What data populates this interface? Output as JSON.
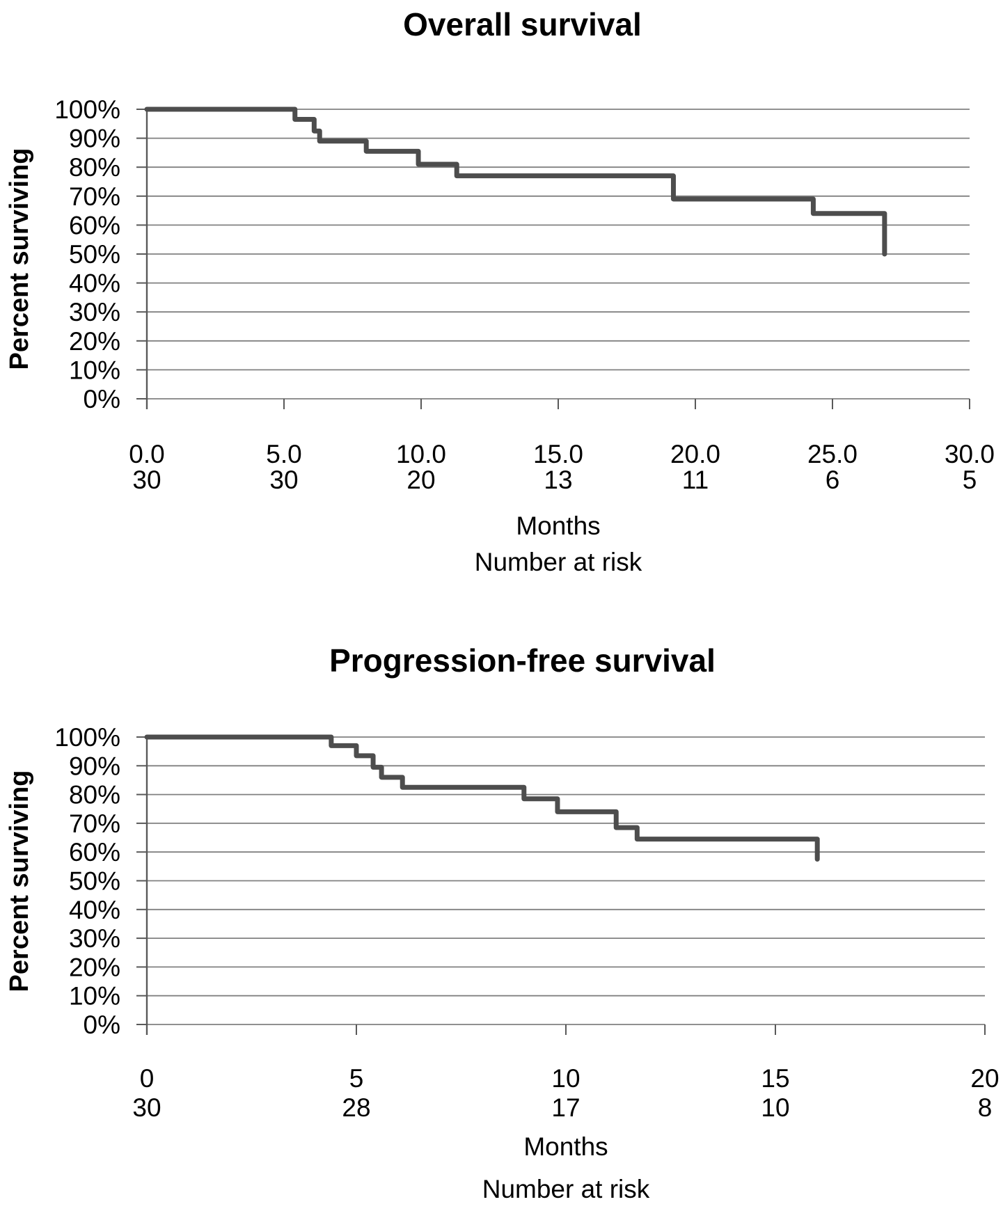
{
  "figure": {
    "background": "#ffffff",
    "curve_color": "#4d4d4d",
    "gridline_color": "#808080",
    "axis_color": "#595959",
    "text_color": "#000000"
  },
  "chart_data": [
    {
      "type": "line",
      "subtype": "kaplan-meier-step",
      "title": "Overall survival",
      "ylabel": "Percent surviving",
      "xlabel": "Months",
      "at_risk_label": "Number at risk",
      "xlim": [
        0,
        30
      ],
      "ylim": [
        0,
        100
      ],
      "grid": "horizontal",
      "legend": "none",
      "y_tick_labels": [
        "100%",
        "90%",
        "80%",
        "70%",
        "60%",
        "50%",
        "40%",
        "30%",
        "20%",
        "10%",
        "0%"
      ],
      "x_tick_labels": [
        "0.0",
        "5.0",
        "10.0",
        "15.0",
        "20.0",
        "25.0",
        "30.0"
      ],
      "x_tick_values": [
        0,
        5,
        10,
        15,
        20,
        25,
        30
      ],
      "number_at_risk": [
        "30",
        "30",
        "20",
        "13",
        "11",
        "6",
        "5"
      ],
      "series": [
        {
          "name": "Overall survival",
          "step_points_t_pct": [
            [
              0,
              100
            ],
            [
              5.4,
              96.5
            ],
            [
              6.1,
              92.5
            ],
            [
              6.3,
              89
            ],
            [
              8.0,
              85.5
            ],
            [
              9.9,
              81
            ],
            [
              11.3,
              77
            ],
            [
              19.2,
              69
            ],
            [
              24.3,
              64
            ],
            [
              26.9,
              50
            ]
          ]
        }
      ]
    },
    {
      "type": "line",
      "subtype": "kaplan-meier-step",
      "title": "Progression-free survival",
      "ylabel": "Percent surviving",
      "xlabel": "Months",
      "at_risk_label": "Number at risk",
      "xlim": [
        0,
        20
      ],
      "ylim": [
        0,
        100
      ],
      "grid": "horizontal",
      "legend": "none",
      "y_tick_labels": [
        "100%",
        "90%",
        "80%",
        "70%",
        "60%",
        "50%",
        "40%",
        "30%",
        "20%",
        "10%",
        "0%"
      ],
      "x_tick_labels": [
        "0",
        "5",
        "10",
        "15",
        "20"
      ],
      "x_tick_values": [
        0,
        5,
        10,
        15,
        20
      ],
      "number_at_risk": [
        "30",
        "28",
        "17",
        "10",
        "8"
      ],
      "series": [
        {
          "name": "Progression-free survival",
          "step_points_t_pct": [
            [
              0,
              100
            ],
            [
              4.4,
              97
            ],
            [
              5.0,
              93.5
            ],
            [
              5.4,
              89.5
            ],
            [
              5.6,
              86
            ],
            [
              6.1,
              82.5
            ],
            [
              9.0,
              78.5
            ],
            [
              9.8,
              74
            ],
            [
              11.2,
              68.5
            ],
            [
              11.7,
              64.5
            ],
            [
              16.0,
              57.5
            ]
          ]
        }
      ]
    }
  ]
}
